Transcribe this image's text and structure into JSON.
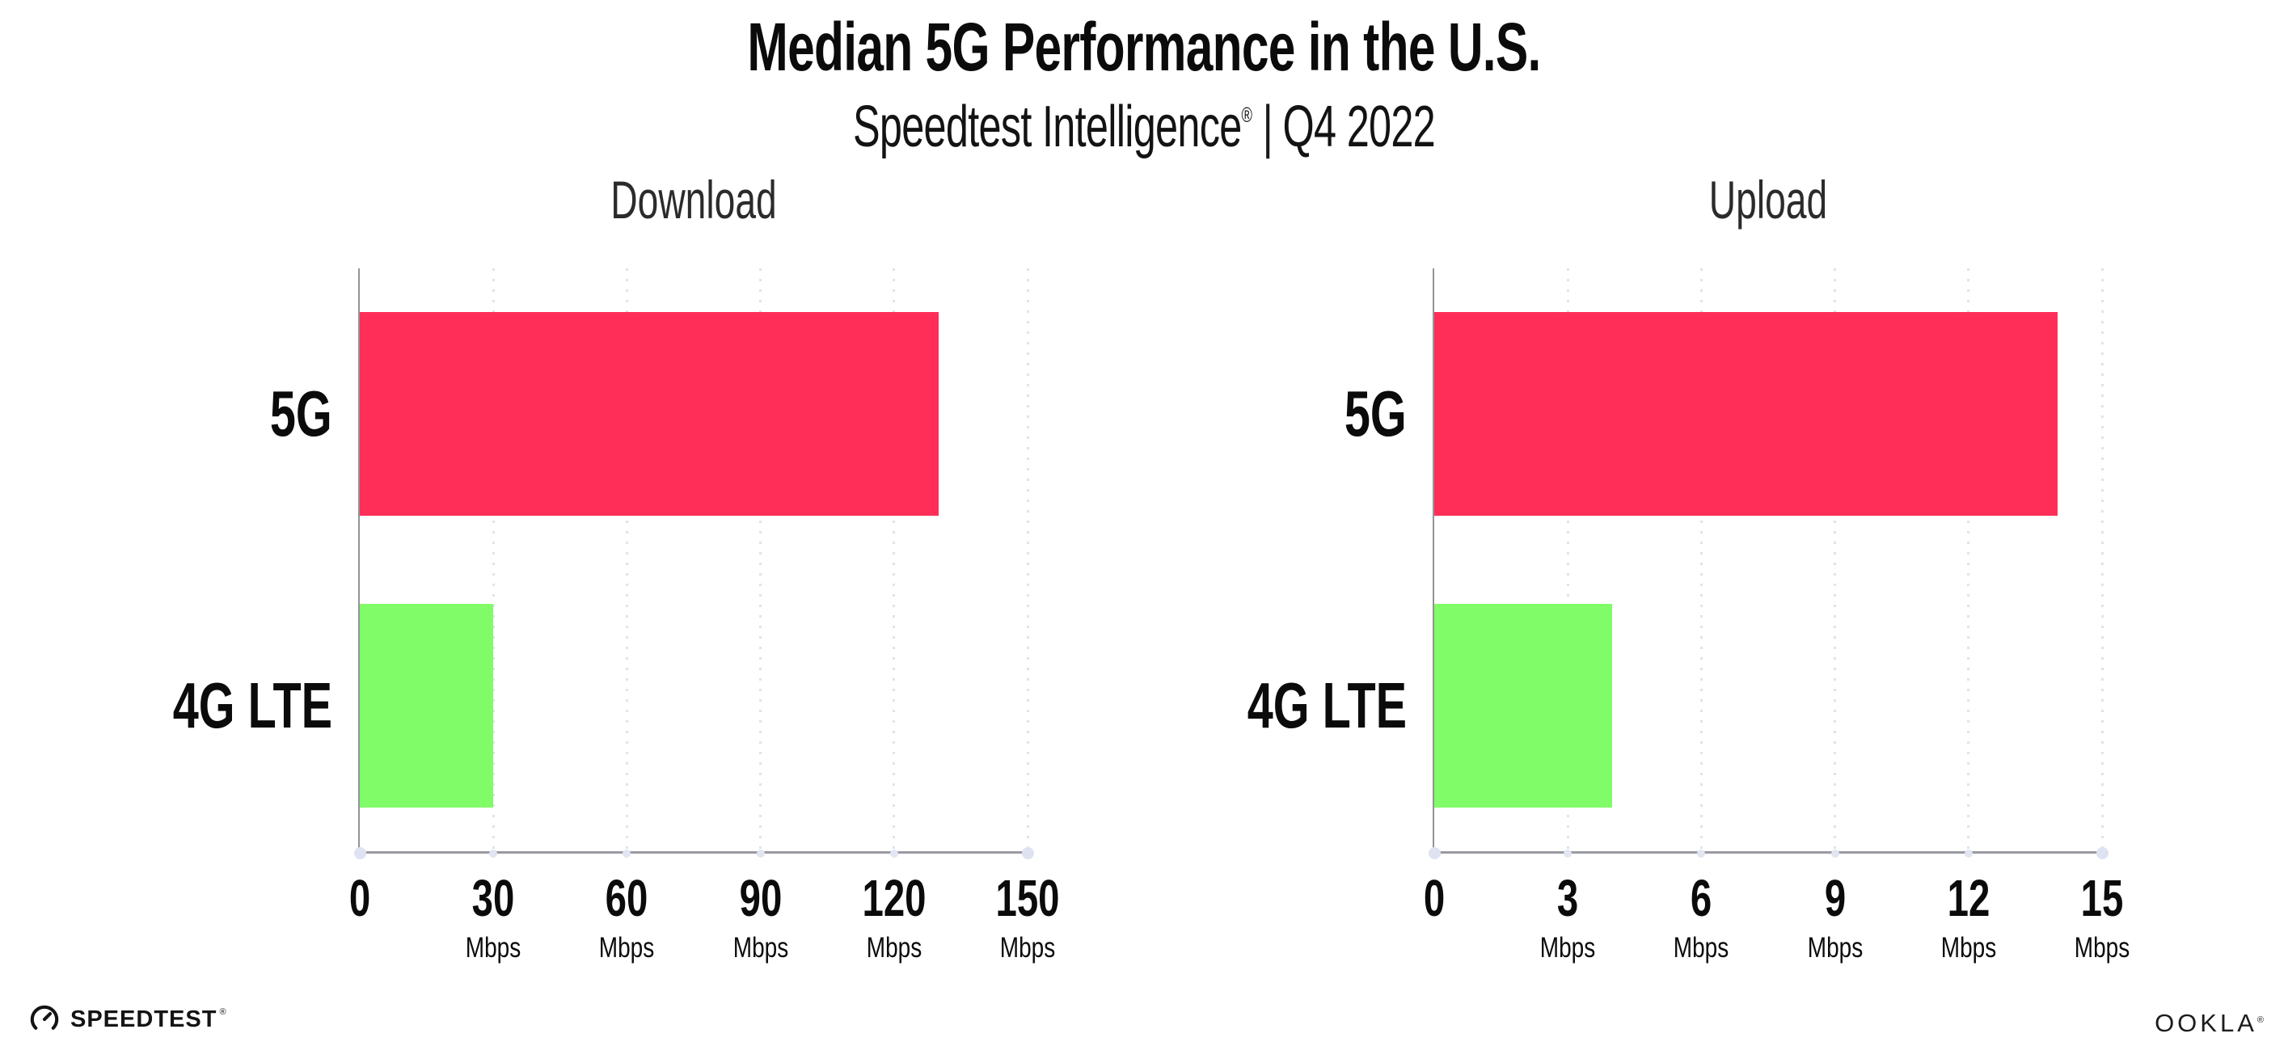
{
  "header": {
    "title": "Median 5G Performance in the U.S.",
    "subtitle_brand": "Speedtest Intelligence",
    "subtitle_reg": "®",
    "subtitle_sep": "|",
    "subtitle_period": "Q4 2022"
  },
  "colors": {
    "bar_5g": "#ff2e59",
    "bar_4g_lte": "#80fc68",
    "axis": "#9a9aa2",
    "gridline": "#e2e2ea",
    "tick_dot": "#e2e5f2",
    "text": "#0b0b0b"
  },
  "chart_data": [
    {
      "type": "bar",
      "orientation": "horizontal",
      "title": "Download",
      "categories": [
        "5G",
        "4G LTE"
      ],
      "values": [
        130,
        30
      ],
      "unit": "Mbps",
      "xlim": [
        0,
        150
      ],
      "xticks": [
        0,
        30,
        60,
        90,
        120,
        150
      ],
      "bar_colors": [
        "#ff2e59",
        "#80fc68"
      ],
      "grid": "dotted-vertical",
      "legend": "none"
    },
    {
      "type": "bar",
      "orientation": "horizontal",
      "title": "Upload",
      "categories": [
        "5G",
        "4G LTE"
      ],
      "values": [
        14,
        4
      ],
      "unit": "Mbps",
      "xlim": [
        0,
        15
      ],
      "xticks": [
        0,
        3,
        6,
        9,
        12,
        15
      ],
      "bar_colors": [
        "#ff2e59",
        "#80fc68"
      ],
      "grid": "dotted-vertical",
      "legend": "none"
    }
  ],
  "footer": {
    "speedtest_label": "SPEEDTEST",
    "speedtest_reg": "®",
    "speedtest_icon": "speedometer-gauge-icon",
    "ookla_label": "OOKLA",
    "ookla_reg": "®"
  }
}
